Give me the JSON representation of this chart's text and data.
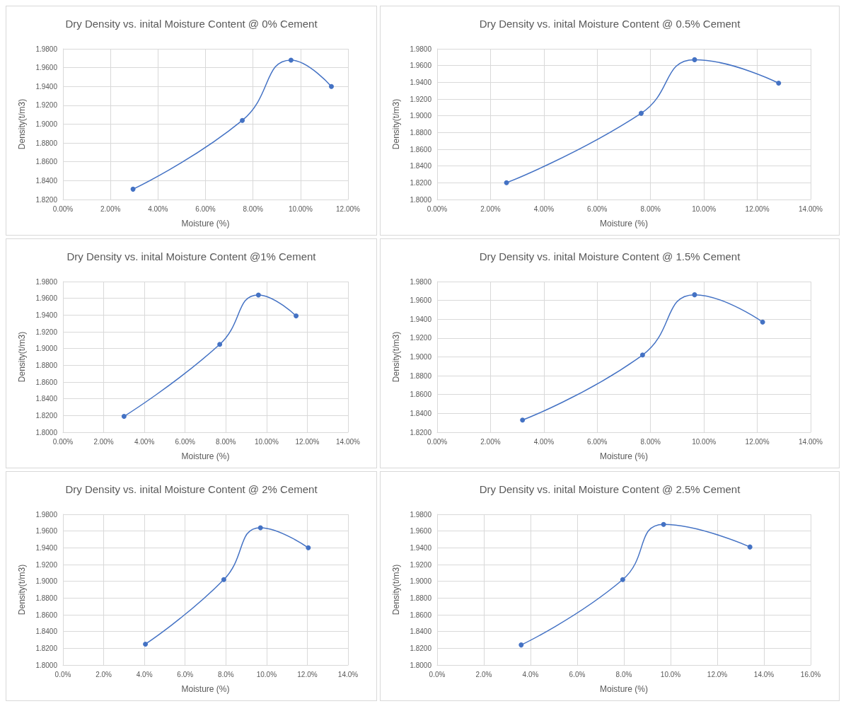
{
  "chart_data": [
    {
      "type": "line",
      "title": "Dry Density vs. inital Moisture Content @ 0% Cement",
      "xlabel": "Moisture (%)",
      "ylabel": "Density(t/m3)",
      "color": "#4472c4",
      "marker": "circle",
      "grid": true,
      "x": [
        2.95,
        7.55,
        9.6,
        11.3
      ],
      "values": [
        1.831,
        1.904,
        1.968,
        1.94
      ],
      "xlim": [
        0,
        12
      ],
      "xticks": [
        {
          "value": 0,
          "label": "0.00%"
        },
        {
          "value": 2,
          "label": "2.00%"
        },
        {
          "value": 4,
          "label": "4.00%"
        },
        {
          "value": 6,
          "label": "6.00%"
        },
        {
          "value": 8,
          "label": "8.00%"
        },
        {
          "value": 10,
          "label": "10.00%"
        },
        {
          "value": 12,
          "label": "12.00%"
        }
      ],
      "ylim": [
        1.82,
        1.98
      ],
      "yticks": [
        {
          "value": 1.82,
          "label": "1.8200"
        },
        {
          "value": 1.84,
          "label": "1.8400"
        },
        {
          "value": 1.86,
          "label": "1.8600"
        },
        {
          "value": 1.88,
          "label": "1.8800"
        },
        {
          "value": 1.9,
          "label": "1.9000"
        },
        {
          "value": 1.92,
          "label": "1.9200"
        },
        {
          "value": 1.94,
          "label": "1.9400"
        },
        {
          "value": 1.96,
          "label": "1.9600"
        },
        {
          "value": 1.98,
          "label": "1.9800"
        }
      ]
    },
    {
      "type": "line",
      "title": "Dry Density vs. inital Moisture Content @ 0.5% Cement",
      "xlabel": "Moisture (%)",
      "ylabel": "Density(t/m3)",
      "color": "#4472c4",
      "marker": "circle",
      "grid": true,
      "x": [
        2.6,
        7.65,
        9.65,
        12.8
      ],
      "values": [
        1.82,
        1.903,
        1.967,
        1.939
      ],
      "xlim": [
        0,
        14
      ],
      "xticks": [
        {
          "value": 0,
          "label": "0.00%"
        },
        {
          "value": 2,
          "label": "2.00%"
        },
        {
          "value": 4,
          "label": "4.00%"
        },
        {
          "value": 6,
          "label": "6.00%"
        },
        {
          "value": 8,
          "label": "8.00%"
        },
        {
          "value": 10,
          "label": "10.00%"
        },
        {
          "value": 12,
          "label": "12.00%"
        },
        {
          "value": 14,
          "label": "14.00%"
        }
      ],
      "ylim": [
        1.8,
        1.98
      ],
      "yticks": [
        {
          "value": 1.8,
          "label": "1.8000"
        },
        {
          "value": 1.82,
          "label": "1.8200"
        },
        {
          "value": 1.84,
          "label": "1.8400"
        },
        {
          "value": 1.86,
          "label": "1.8600"
        },
        {
          "value": 1.88,
          "label": "1.8800"
        },
        {
          "value": 1.9,
          "label": "1.9000"
        },
        {
          "value": 1.92,
          "label": "1.9200"
        },
        {
          "value": 1.94,
          "label": "1.9400"
        },
        {
          "value": 1.96,
          "label": "1.9600"
        },
        {
          "value": 1.98,
          "label": "1.9800"
        }
      ]
    },
    {
      "type": "line",
      "title": "Dry Density vs. inital Moisture Content @1% Cement",
      "xlabel": "Moisture (%)",
      "ylabel": "Density(t/m3)",
      "color": "#4472c4",
      "marker": "circle",
      "grid": true,
      "x": [
        3.0,
        7.7,
        9.6,
        11.45
      ],
      "values": [
        1.819,
        1.905,
        1.964,
        1.939
      ],
      "xlim": [
        0,
        14
      ],
      "xticks": [
        {
          "value": 0,
          "label": "0.00%"
        },
        {
          "value": 2,
          "label": "2.00%"
        },
        {
          "value": 4,
          "label": "4.00%"
        },
        {
          "value": 6,
          "label": "6.00%"
        },
        {
          "value": 8,
          "label": "8.00%"
        },
        {
          "value": 10,
          "label": "10.00%"
        },
        {
          "value": 12,
          "label": "12.00%"
        },
        {
          "value": 14,
          "label": "14.00%"
        }
      ],
      "ylim": [
        1.8,
        1.98
      ],
      "yticks": [
        {
          "value": 1.8,
          "label": "1.8000"
        },
        {
          "value": 1.82,
          "label": "1.8200"
        },
        {
          "value": 1.84,
          "label": "1.8400"
        },
        {
          "value": 1.86,
          "label": "1.8600"
        },
        {
          "value": 1.88,
          "label": "1.8800"
        },
        {
          "value": 1.9,
          "label": "1.9000"
        },
        {
          "value": 1.92,
          "label": "1.9200"
        },
        {
          "value": 1.94,
          "label": "1.9400"
        },
        {
          "value": 1.96,
          "label": "1.9600"
        },
        {
          "value": 1.98,
          "label": "1.9800"
        }
      ]
    },
    {
      "type": "line",
      "title": "Dry Density vs. inital Moisture Content @ 1.5% Cement",
      "xlabel": "Moisture (%)",
      "ylabel": "Density(t/m3)",
      "color": "#4472c4",
      "marker": "circle",
      "grid": true,
      "x": [
        3.2,
        7.7,
        9.65,
        12.2
      ],
      "values": [
        1.833,
        1.902,
        1.966,
        1.937
      ],
      "xlim": [
        0,
        14
      ],
      "xticks": [
        {
          "value": 0,
          "label": "0.00%"
        },
        {
          "value": 2,
          "label": "2.00%"
        },
        {
          "value": 4,
          "label": "4.00%"
        },
        {
          "value": 6,
          "label": "6.00%"
        },
        {
          "value": 8,
          "label": "8.00%"
        },
        {
          "value": 10,
          "label": "10.00%"
        },
        {
          "value": 12,
          "label": "12.00%"
        },
        {
          "value": 14,
          "label": "14.00%"
        }
      ],
      "ylim": [
        1.82,
        1.98
      ],
      "yticks": [
        {
          "value": 1.82,
          "label": "1.8200"
        },
        {
          "value": 1.84,
          "label": "1.8400"
        },
        {
          "value": 1.86,
          "label": "1.8600"
        },
        {
          "value": 1.88,
          "label": "1.8800"
        },
        {
          "value": 1.9,
          "label": "1.9000"
        },
        {
          "value": 1.92,
          "label": "1.9200"
        },
        {
          "value": 1.94,
          "label": "1.9400"
        },
        {
          "value": 1.96,
          "label": "1.9600"
        },
        {
          "value": 1.98,
          "label": "1.9800"
        }
      ]
    },
    {
      "type": "line",
      "title": "Dry Density vs. inital Moisture Content @ 2% Cement",
      "xlabel": "Moisture (%)",
      "ylabel": "Density(t/m3)",
      "color": "#4472c4",
      "marker": "circle",
      "grid": true,
      "x": [
        4.05,
        7.9,
        9.7,
        12.05
      ],
      "values": [
        1.825,
        1.902,
        1.964,
        1.94
      ],
      "xlim": [
        0,
        14
      ],
      "xticks": [
        {
          "value": 0,
          "label": "0.0%"
        },
        {
          "value": 2,
          "label": "2.0%"
        },
        {
          "value": 4,
          "label": "4.0%"
        },
        {
          "value": 6,
          "label": "6.0%"
        },
        {
          "value": 8,
          "label": "8.0%"
        },
        {
          "value": 10,
          "label": "10.0%"
        },
        {
          "value": 12,
          "label": "12.0%"
        },
        {
          "value": 14,
          "label": "14.0%"
        }
      ],
      "ylim": [
        1.8,
        1.98
      ],
      "yticks": [
        {
          "value": 1.8,
          "label": "1.8000"
        },
        {
          "value": 1.82,
          "label": "1.8200"
        },
        {
          "value": 1.84,
          "label": "1.8400"
        },
        {
          "value": 1.86,
          "label": "1.8600"
        },
        {
          "value": 1.88,
          "label": "1.8800"
        },
        {
          "value": 1.9,
          "label": "1.9000"
        },
        {
          "value": 1.92,
          "label": "1.9200"
        },
        {
          "value": 1.94,
          "label": "1.9400"
        },
        {
          "value": 1.96,
          "label": "1.9600"
        },
        {
          "value": 1.98,
          "label": "1.9800"
        }
      ]
    },
    {
      "type": "line",
      "title": "Dry Density vs. inital Moisture Content @ 2.5% Cement",
      "xlabel": "Moisture (%)",
      "ylabel": "Density(t/m3)",
      "color": "#4472c4",
      "marker": "circle",
      "grid": true,
      "x": [
        3.6,
        7.95,
        9.7,
        13.4
      ],
      "values": [
        1.824,
        1.902,
        1.968,
        1.941
      ],
      "xlim": [
        0,
        16
      ],
      "xticks": [
        {
          "value": 0,
          "label": "0.0%"
        },
        {
          "value": 2,
          "label": "2.0%"
        },
        {
          "value": 4,
          "label": "4.0%"
        },
        {
          "value": 6,
          "label": "6.0%"
        },
        {
          "value": 8,
          "label": "8.0%"
        },
        {
          "value": 10,
          "label": "10.0%"
        },
        {
          "value": 12,
          "label": "12.0%"
        },
        {
          "value": 14,
          "label": "14.0%"
        },
        {
          "value": 16,
          "label": "16.0%"
        }
      ],
      "ylim": [
        1.8,
        1.98
      ],
      "yticks": [
        {
          "value": 1.8,
          "label": "1.8000"
        },
        {
          "value": 1.82,
          "label": "1.8200"
        },
        {
          "value": 1.84,
          "label": "1.8400"
        },
        {
          "value": 1.86,
          "label": "1.8600"
        },
        {
          "value": 1.88,
          "label": "1.8800"
        },
        {
          "value": 1.9,
          "label": "1.9000"
        },
        {
          "value": 1.92,
          "label": "1.9200"
        },
        {
          "value": 1.94,
          "label": "1.9400"
        },
        {
          "value": 1.96,
          "label": "1.9600"
        },
        {
          "value": 1.98,
          "label": "1.9800"
        }
      ]
    }
  ]
}
